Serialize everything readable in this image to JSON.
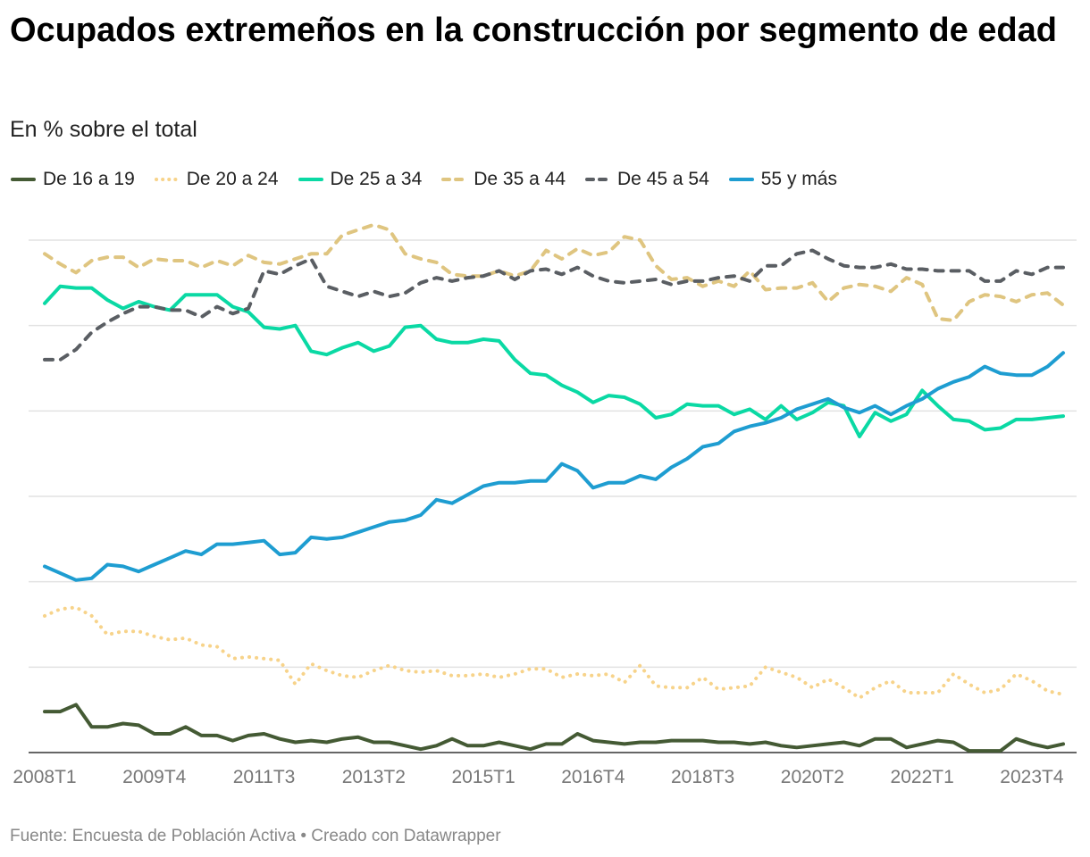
{
  "title": "Ocupados extremeños en la construcción por segmento de edad",
  "subtitle": "En % sobre el total",
  "footer": {
    "source": "Fuente: Encuesta de Población Activa",
    "separator": "•",
    "credit": "Creado con Datawrapper"
  },
  "chart_data": {
    "type": "line",
    "title": "Ocupados extremeños en la construcción por segmento de edad",
    "ylabel": "En % sobre el total",
    "ylim": [
      0,
      30
    ],
    "y_gridlines": [
      5,
      10,
      15,
      20,
      25,
      30
    ],
    "x_start": "2008T1",
    "x_end": "2024T1",
    "x_ticks": [
      "2008T1",
      "2009T4",
      "2011T3",
      "2013T2",
      "2015T1",
      "2016T4",
      "2018T3",
      "2020T2",
      "2022T1",
      "2023T4"
    ],
    "legend_position": "top-left",
    "series": [
      {
        "name": "De 16 a 19",
        "color": "#445a34",
        "dash": "solid",
        "values": [
          2.4,
          2.4,
          2.8,
          1.5,
          1.5,
          1.7,
          1.6,
          1.1,
          1.1,
          1.5,
          1.0,
          1.0,
          0.7,
          1.0,
          1.1,
          0.8,
          0.6,
          0.7,
          0.6,
          0.8,
          0.9,
          0.6,
          0.6,
          0.4,
          0.2,
          0.4,
          0.8,
          0.4,
          0.4,
          0.6,
          0.4,
          0.2,
          0.5,
          0.5,
          1.1,
          0.7,
          0.6,
          0.5,
          0.6,
          0.6,
          0.7,
          0.7,
          0.7,
          0.6,
          0.6,
          0.5,
          0.6,
          0.4,
          0.3,
          0.4,
          0.5,
          0.6,
          0.4,
          0.8,
          0.8,
          0.3,
          0.5,
          0.7,
          0.6,
          0.1,
          0.1,
          0.1,
          0.8,
          0.5,
          0.3,
          0.5
        ]
      },
      {
        "name": "De 20 a 24",
        "color": "#f7d38a",
        "dash": "dotted",
        "values": [
          8.0,
          8.4,
          8.5,
          8.0,
          6.9,
          7.1,
          7.1,
          6.8,
          6.6,
          6.7,
          6.3,
          6.2,
          5.5,
          5.6,
          5.5,
          5.4,
          4.0,
          5.2,
          4.8,
          4.5,
          4.4,
          4.8,
          5.1,
          4.8,
          4.7,
          4.8,
          4.5,
          4.5,
          4.6,
          4.4,
          4.6,
          4.9,
          4.9,
          4.4,
          4.6,
          4.5,
          4.6,
          4.1,
          5.1,
          3.9,
          3.8,
          3.8,
          4.4,
          3.7,
          3.8,
          3.9,
          5.0,
          4.7,
          4.4,
          3.8,
          4.3,
          3.8,
          3.2,
          3.8,
          4.2,
          3.5,
          3.5,
          3.5,
          4.6,
          4.0,
          3.5,
          3.7,
          4.6,
          4.2,
          3.6,
          3.4
        ]
      },
      {
        "name": "De 25 a 34",
        "color": "#0ad9a4",
        "dash": "solid",
        "values": [
          26.3,
          27.3,
          27.2,
          27.2,
          26.5,
          26.0,
          26.4,
          26.1,
          25.9,
          26.8,
          26.8,
          26.8,
          26.1,
          25.8,
          24.9,
          24.8,
          25.0,
          23.5,
          23.3,
          23.7,
          24.0,
          23.5,
          23.8,
          24.9,
          25.0,
          24.2,
          24.0,
          24.0,
          24.2,
          24.1,
          23.0,
          22.2,
          22.1,
          21.5,
          21.1,
          20.5,
          20.9,
          20.8,
          20.4,
          19.6,
          19.8,
          20.4,
          20.3,
          20.3,
          19.8,
          20.1,
          19.5,
          20.3,
          19.5,
          19.9,
          20.5,
          20.3,
          18.5,
          19.9,
          19.4,
          19.8,
          21.2,
          20.3,
          19.5,
          19.4,
          18.9,
          19.0,
          19.5,
          19.5,
          19.6,
          19.7
        ]
      },
      {
        "name": "De 35 a 44",
        "color": "#dfc580",
        "dash": "dashed",
        "values": [
          29.2,
          28.6,
          28.1,
          28.8,
          29.0,
          29.0,
          28.4,
          28.9,
          28.8,
          28.8,
          28.4,
          28.8,
          28.5,
          29.1,
          28.7,
          28.6,
          28.9,
          29.2,
          29.2,
          30.3,
          30.6,
          30.9,
          30.6,
          29.2,
          28.9,
          28.7,
          28.0,
          27.9,
          27.9,
          28.2,
          27.9,
          28.2,
          29.4,
          28.9,
          29.5,
          29.1,
          29.3,
          30.2,
          30.0,
          28.5,
          27.7,
          27.8,
          27.3,
          27.6,
          27.3,
          28.2,
          27.1,
          27.2,
          27.2,
          27.5,
          26.4,
          27.2,
          27.4,
          27.3,
          27.0,
          27.8,
          27.4,
          25.4,
          25.3,
          26.4,
          26.8,
          26.7,
          26.4,
          26.8,
          26.9,
          26.2
        ]
      },
      {
        "name": "De 45 a 54",
        "color": "#5a5e63",
        "dash": "dashed",
        "values": [
          23.0,
          23.0,
          23.6,
          24.6,
          25.2,
          25.7,
          26.1,
          26.1,
          25.9,
          25.9,
          25.5,
          26.1,
          25.7,
          26.0,
          28.2,
          28.0,
          28.5,
          28.9,
          27.3,
          27.0,
          26.7,
          27.0,
          26.7,
          26.9,
          27.5,
          27.8,
          27.6,
          27.8,
          27.9,
          28.2,
          27.7,
          28.2,
          28.3,
          28.0,
          28.4,
          27.9,
          27.6,
          27.5,
          27.6,
          27.7,
          27.4,
          27.6,
          27.6,
          27.8,
          27.9,
          27.6,
          28.5,
          28.5,
          29.2,
          29.4,
          28.9,
          28.5,
          28.4,
          28.4,
          28.6,
          28.3,
          28.3,
          28.2,
          28.2,
          28.2,
          27.6,
          27.6,
          28.2,
          28.0,
          28.4,
          28.4
        ]
      },
      {
        "name": "55 y más",
        "color": "#1e9dd1",
        "dash": "solid",
        "values": [
          10.9,
          10.5,
          10.1,
          10.2,
          11.0,
          10.9,
          10.6,
          11.0,
          11.4,
          11.8,
          11.6,
          12.2,
          12.2,
          12.3,
          12.4,
          11.6,
          11.7,
          12.6,
          12.5,
          12.6,
          12.9,
          13.2,
          13.5,
          13.6,
          13.9,
          14.8,
          14.6,
          15.1,
          15.6,
          15.8,
          15.8,
          15.9,
          15.9,
          16.9,
          16.5,
          15.5,
          15.8,
          15.8,
          16.2,
          16.0,
          16.7,
          17.2,
          17.9,
          18.1,
          18.8,
          19.1,
          19.3,
          19.6,
          20.1,
          20.4,
          20.7,
          20.2,
          19.9,
          20.3,
          19.8,
          20.3,
          20.7,
          21.3,
          21.7,
          22.0,
          22.6,
          22.2,
          22.1,
          22.1,
          22.6,
          23.4
        ]
      }
    ]
  }
}
